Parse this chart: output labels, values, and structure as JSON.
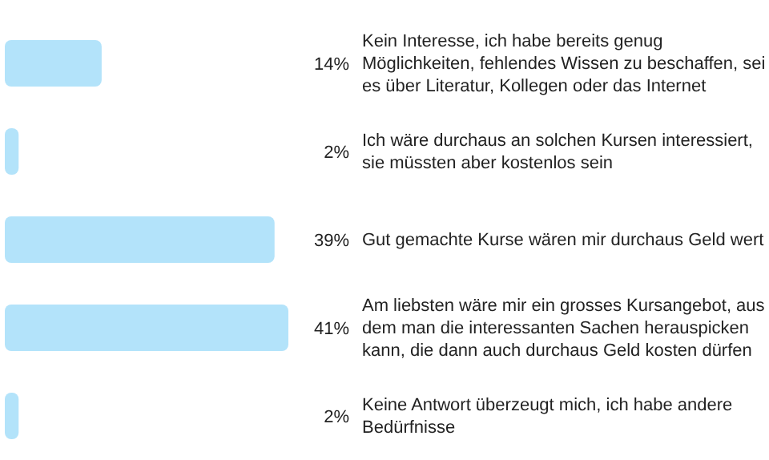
{
  "chart_data": {
    "type": "bar",
    "orientation": "horizontal",
    "categories": [
      "Kein Interesse, ich habe bereits genug Möglichkeiten, fehlendes Wissen zu beschaffen, sei es über Literatur, Kollegen oder das Internet",
      "Ich wäre durchaus an solchen Kursen interessiert, sie müssten aber kostenlos sein",
      "Gut gemachte Kurse wären mir durchaus Geld wert",
      "Am liebsten wäre mir ein grosses Kursangebot, aus dem man die interessanten Sachen herauspicken kann, die dann auch durchaus Geld kosten dürfen",
      "Keine Antwort überzeugt mich, ich habe andere Bedürfnisse"
    ],
    "values": [
      14,
      2,
      39,
      41,
      2
    ],
    "value_labels": [
      "14%",
      "2%",
      "39%",
      "41%",
      "2%"
    ],
    "color": "#b3e3fa",
    "grid": false,
    "legend": false
  }
}
